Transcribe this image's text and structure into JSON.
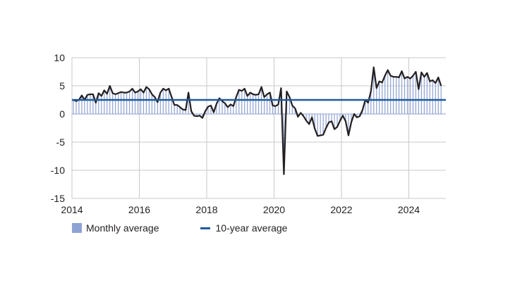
{
  "chart_data": {
    "type": "bar+line",
    "title": "",
    "xlabel": "",
    "ylabel": "",
    "ylim": [
      -15,
      10
    ],
    "xlim": [
      2014,
      2025.1
    ],
    "yticks": [
      10,
      5,
      0,
      -5,
      -10,
      -15
    ],
    "xticks": [
      "2014",
      "2016",
      "2018",
      "2020",
      "2022",
      "2024"
    ],
    "ten_year_average": 2.5,
    "colors": {
      "bars": "#8fa2d4",
      "line": "#231f20",
      "average": "#1f5b9e",
      "grid": "#c8c8c8"
    },
    "series": [
      {
        "name": "Monthly average",
        "start": 2014,
        "frequency": "monthly",
        "values": [
          2.5,
          2.3,
          2.5,
          3.3,
          2.5,
          3.4,
          3.5,
          3.5,
          2.0,
          3.7,
          3.2,
          4.2,
          3.6,
          5.0,
          3.7,
          3.5,
          3.7,
          3.9,
          3.8,
          3.8,
          4.0,
          4.5,
          3.8,
          4.0,
          4.4,
          3.8,
          4.8,
          4.4,
          3.5,
          3.0,
          2.1,
          3.8,
          4.5,
          4.2,
          4.5,
          3.0,
          1.6,
          1.6,
          1.2,
          0.8,
          0.7,
          3.8,
          0.5,
          -0.3,
          -0.4,
          -0.3,
          -0.7,
          0.5,
          1.3,
          1.5,
          0.3,
          1.8,
          2.8,
          2.3,
          1.9,
          1.2,
          1.7,
          1.4,
          3.0,
          4.3,
          4.1,
          4.5,
          3.2,
          3.8,
          3.5,
          3.4,
          3.5,
          4.8,
          3.0,
          3.5,
          3.8,
          1.5,
          1.4,
          1.7,
          4.6,
          -10.7,
          4.0,
          3.0,
          1.5,
          1.0,
          -0.5,
          0.2,
          -0.4,
          -1.2,
          -1.8,
          -0.6,
          -2.6,
          -3.9,
          -3.8,
          -3.7,
          -2.5,
          -1.5,
          -1.3,
          -2.7,
          -2.3,
          -1.2,
          -0.3,
          -1.3,
          -3.8,
          -1.5,
          0.0,
          -0.6,
          -0.4,
          0.7,
          2.5,
          2.0,
          4.0,
          8.3,
          4.6,
          5.8,
          5.6,
          6.8,
          7.8,
          6.8,
          6.6,
          6.6,
          6.5,
          7.6,
          6.3,
          6.6,
          6.3,
          6.8,
          7.5,
          4.4,
          7.4,
          6.6,
          7.3,
          5.8,
          6.0,
          5.5,
          6.5,
          5.0
        ]
      }
    ],
    "legend": {
      "position": "bottom-left",
      "items": [
        {
          "label": "Monthly average",
          "kind": "bar"
        },
        {
          "label": "10-year average",
          "kind": "line"
        }
      ]
    }
  }
}
